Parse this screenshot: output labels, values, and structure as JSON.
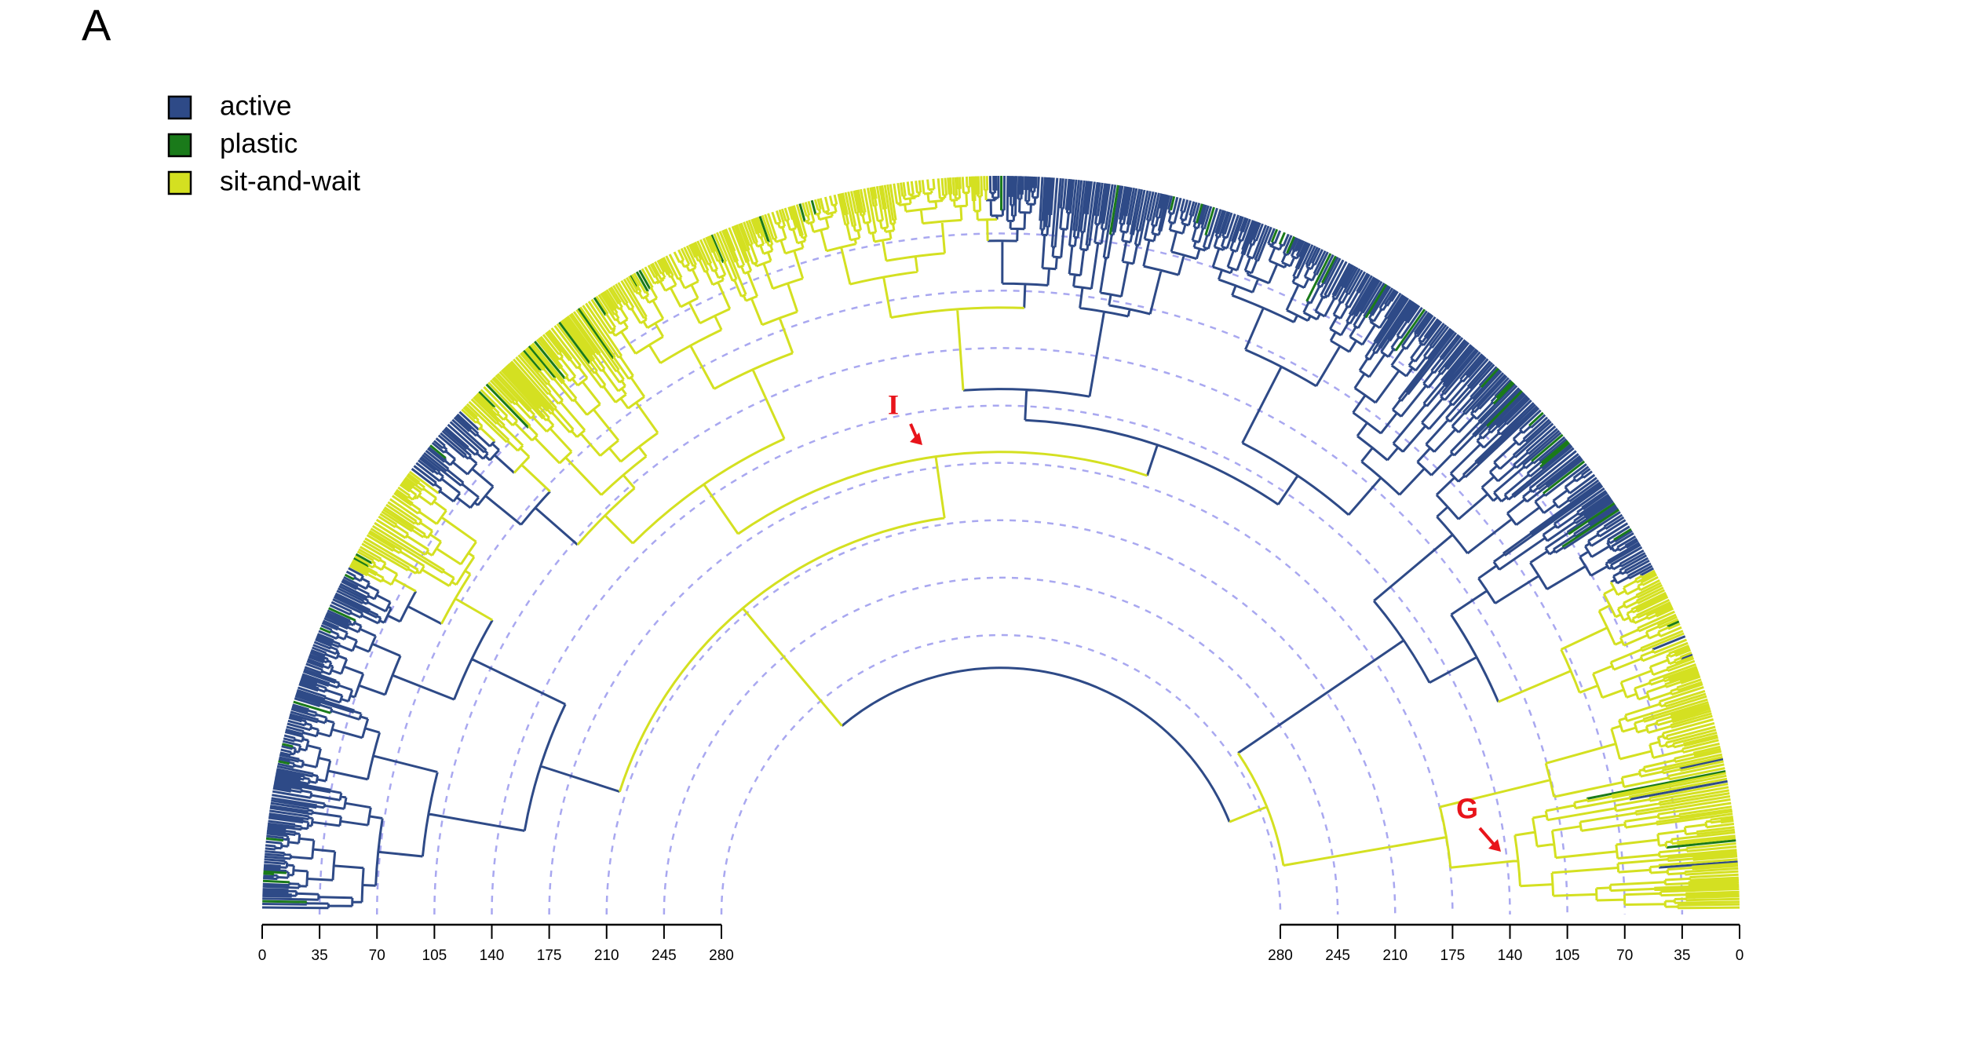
{
  "chart_data": {
    "type": "phylogeny",
    "panel_label": "A",
    "series": [
      {
        "name": "active",
        "color": "#2e4a87"
      },
      {
        "name": "plastic",
        "color": "#1a7a1a"
      },
      {
        "name": "sit-and-wait",
        "color": "#d4e021"
      }
    ],
    "xlim": [
      0,
      280
    ],
    "xticks": [
      0,
      35,
      70,
      105,
      140,
      175,
      210,
      245,
      280
    ],
    "annotations": [
      {
        "text": "I",
        "color": "#e8141b"
      },
      {
        "text": "G",
        "color": "#e8141b"
      }
    ],
    "grid": true,
    "grid_color": "#a9a8f0"
  }
}
